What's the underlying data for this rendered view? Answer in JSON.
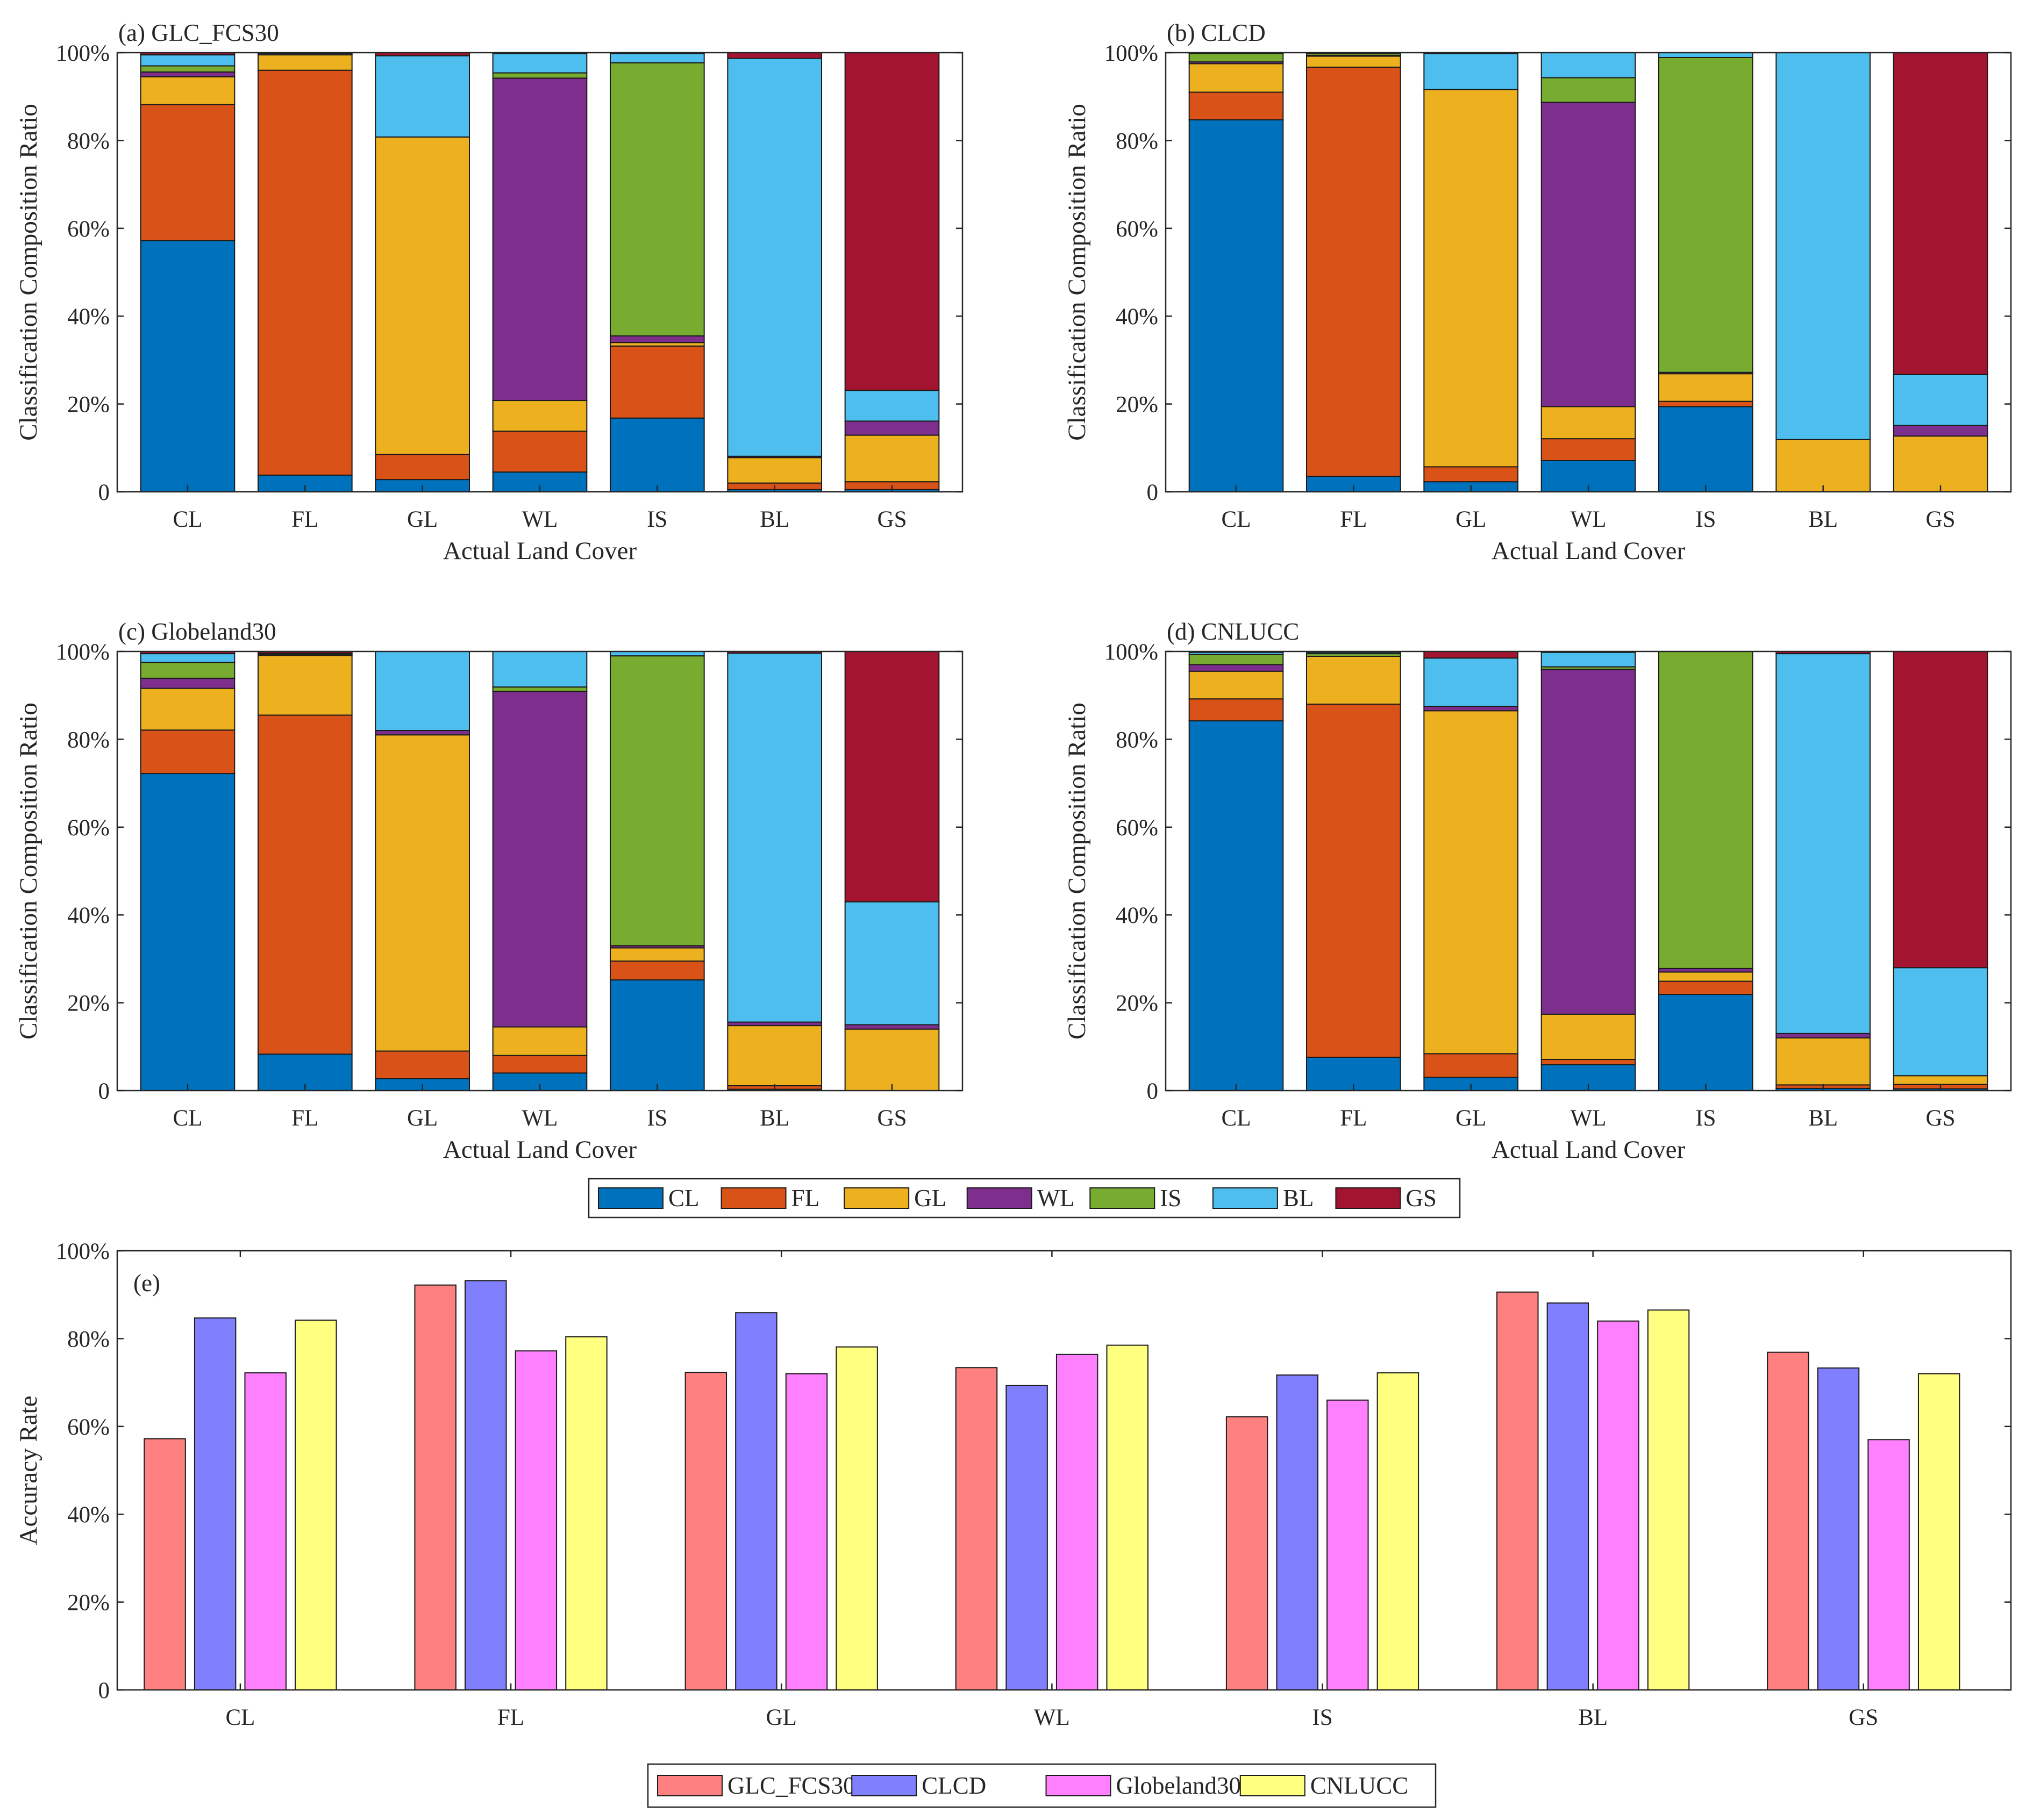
{
  "colors": {
    "CL": "#0072BD",
    "FL": "#D95319",
    "GL": "#EDB120",
    "WL": "#7E2F8E",
    "IS": "#77AC30",
    "BL": "#4DBEEE",
    "GS": "#A2142F",
    "GLC_FCS30": "#FF8080",
    "CLCD": "#8080FF",
    "Globeland30": "#FF80FF",
    "CNLUCC": "#FFFF80"
  },
  "chart_data": [
    {
      "type": "bar",
      "stacked": true,
      "title": "(a) GLC_FCS30",
      "xlabel": "Actual Land Cover",
      "ylabel": "Classification Composition Ratio",
      "ylim": [
        0,
        100
      ],
      "yticks": [
        "0",
        "20%",
        "40%",
        "60%",
        "80%",
        "100%"
      ],
      "categories": [
        "CL",
        "FL",
        "GL",
        "WL",
        "IS",
        "BL",
        "GS"
      ],
      "series": [
        {
          "name": "CL",
          "values": [
            57.2,
            3.8,
            2.8,
            4.5,
            16.8,
            0.5,
            0.5
          ]
        },
        {
          "name": "FL",
          "values": [
            31.0,
            92.2,
            5.7,
            9.3,
            16.4,
            1.5,
            1.8
          ]
        },
        {
          "name": "GL",
          "values": [
            6.3,
            3.5,
            72.3,
            7.0,
            0.8,
            5.8,
            10.6
          ]
        },
        {
          "name": "WL",
          "values": [
            1.1,
            0.0,
            0.0,
            73.4,
            1.5,
            0.3,
            3.2
          ]
        },
        {
          "name": "IS",
          "values": [
            1.4,
            0.0,
            0.0,
            1.2,
            62.2,
            0.0,
            0.0
          ]
        },
        {
          "name": "BL",
          "values": [
            2.5,
            0.3,
            18.5,
            4.4,
            2.1,
            90.6,
            7.0
          ]
        },
        {
          "name": "GS",
          "values": [
            0.5,
            0.2,
            0.7,
            0.2,
            0.2,
            1.3,
            76.9
          ]
        }
      ]
    },
    {
      "type": "bar",
      "stacked": true,
      "title": "(b) CLCD",
      "xlabel": "Actual Land Cover",
      "ylabel": "Classification Composition Ratio",
      "ylim": [
        0,
        100
      ],
      "yticks": [
        "0",
        "20%",
        "40%",
        "60%",
        "80%",
        "100%"
      ],
      "categories": [
        "CL",
        "FL",
        "GL",
        "WL",
        "IS",
        "BL",
        "GS"
      ],
      "series": [
        {
          "name": "CL",
          "values": [
            84.7,
            3.5,
            2.3,
            7.1,
            19.4,
            0.0,
            0.0
          ]
        },
        {
          "name": "FL",
          "values": [
            6.3,
            93.2,
            3.4,
            5.0,
            1.2,
            0.0,
            0.0
          ]
        },
        {
          "name": "GL",
          "values": [
            6.5,
            2.5,
            85.9,
            7.3,
            6.3,
            11.9,
            12.7
          ]
        },
        {
          "name": "WL",
          "values": [
            0.4,
            0.2,
            0.0,
            69.3,
            0.3,
            0.0,
            2.4
          ]
        },
        {
          "name": "IS",
          "values": [
            1.9,
            0.4,
            0.0,
            5.6,
            71.7,
            0.0,
            0.0
          ]
        },
        {
          "name": "BL",
          "values": [
            0.0,
            0.0,
            8.2,
            5.7,
            1.1,
            88.1,
            11.6
          ]
        },
        {
          "name": "GS",
          "values": [
            0.2,
            0.2,
            0.2,
            0.0,
            0.0,
            0.0,
            73.3
          ]
        }
      ]
    },
    {
      "type": "bar",
      "stacked": true,
      "title": "(c) Globeland30",
      "xlabel": "Actual Land Cover",
      "ylabel": "Classification Composition Ratio",
      "ylim": [
        0,
        100
      ],
      "yticks": [
        "0",
        "20%",
        "40%",
        "60%",
        "80%",
        "100%"
      ],
      "categories": [
        "CL",
        "FL",
        "GL",
        "WL",
        "IS",
        "BL",
        "GS"
      ],
      "series": [
        {
          "name": "CL",
          "values": [
            72.2,
            8.3,
            2.7,
            4.0,
            25.2,
            0.3,
            0.0
          ]
        },
        {
          "name": "FL",
          "values": [
            9.9,
            77.2,
            6.3,
            4.0,
            4.3,
            0.8,
            0.0
          ]
        },
        {
          "name": "GL",
          "values": [
            9.5,
            13.6,
            72.0,
            6.5,
            3.0,
            13.7,
            14.0
          ]
        },
        {
          "name": "WL",
          "values": [
            2.3,
            0.0,
            1.0,
            76.4,
            0.5,
            0.8,
            1.0
          ]
        },
        {
          "name": "IS",
          "values": [
            3.6,
            0.3,
            0.0,
            1.0,
            66.0,
            0.0,
            0.0
          ]
        },
        {
          "name": "BL",
          "values": [
            2.0,
            0.2,
            18.0,
            8.1,
            1.0,
            84.0,
            28.0
          ]
        },
        {
          "name": "GS",
          "values": [
            0.5,
            0.4,
            0.0,
            0.0,
            0.0,
            0.4,
            57.0
          ]
        }
      ]
    },
    {
      "type": "bar",
      "stacked": true,
      "title": "(d) CNLUCC",
      "xlabel": "Actual Land Cover",
      "ylabel": "Classification Composition Ratio",
      "ylim": [
        0,
        100
      ],
      "yticks": [
        "0",
        "20%",
        "40%",
        "60%",
        "80%",
        "100%"
      ],
      "categories": [
        "CL",
        "FL",
        "GL",
        "WL",
        "IS",
        "BL",
        "GS"
      ],
      "series": [
        {
          "name": "CL",
          "values": [
            84.2,
            7.6,
            3.0,
            5.9,
            21.9,
            0.5,
            0.4
          ]
        },
        {
          "name": "FL",
          "values": [
            5.0,
            80.4,
            5.4,
            1.2,
            3.0,
            0.8,
            1.0
          ]
        },
        {
          "name": "GL",
          "values": [
            6.3,
            10.9,
            78.1,
            10.3,
            2.1,
            10.7,
            2.0
          ]
        },
        {
          "name": "WL",
          "values": [
            1.5,
            0.0,
            1.0,
            78.5,
            0.8,
            1.0,
            0.0
          ]
        },
        {
          "name": "IS",
          "values": [
            2.3,
            0.6,
            0.0,
            0.6,
            72.2,
            0.0,
            0.0
          ]
        },
        {
          "name": "BL",
          "values": [
            0.5,
            0.3,
            11.0,
            3.3,
            0.0,
            86.5,
            24.6
          ]
        },
        {
          "name": "GS",
          "values": [
            0.2,
            0.2,
            1.5,
            0.2,
            0.0,
            0.5,
            72.0
          ]
        }
      ]
    },
    {
      "type": "bar",
      "stacked": false,
      "title": "(e)",
      "xlabel": "",
      "ylabel": "Accuracy Rate",
      "ylim": [
        0,
        100
      ],
      "yticks": [
        "0",
        "20%",
        "40%",
        "60%",
        "80%",
        "100%"
      ],
      "categories": [
        "CL",
        "FL",
        "GL",
        "WL",
        "IS",
        "BL",
        "GS"
      ],
      "series": [
        {
          "name": "GLC_FCS30",
          "values": [
            57.2,
            92.2,
            72.3,
            73.4,
            62.2,
            90.6,
            76.9
          ]
        },
        {
          "name": "CLCD",
          "values": [
            84.7,
            93.2,
            85.9,
            69.3,
            71.7,
            88.1,
            73.3
          ]
        },
        {
          "name": "Globeland30",
          "values": [
            72.2,
            77.2,
            72.0,
            76.4,
            66.0,
            84.0,
            57.0
          ]
        },
        {
          "name": "CNLUCC",
          "values": [
            84.2,
            80.4,
            78.1,
            78.5,
            72.2,
            86.5,
            72.0
          ]
        }
      ]
    }
  ],
  "legends": {
    "classes": [
      "CL",
      "FL",
      "GL",
      "WL",
      "IS",
      "BL",
      "GS"
    ],
    "products": [
      "GLC_FCS30",
      "CLCD",
      "Globeland30",
      "CNLUCC"
    ]
  }
}
